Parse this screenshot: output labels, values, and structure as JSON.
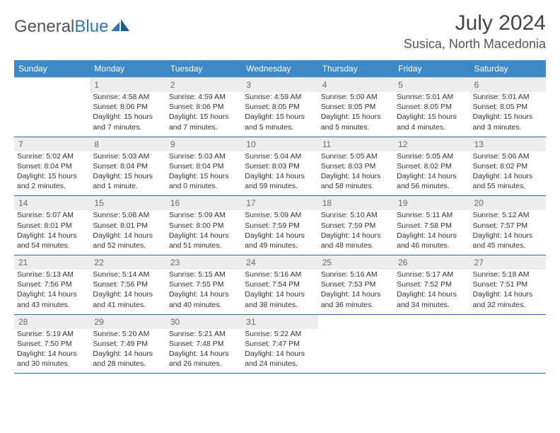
{
  "brand": {
    "part1": "General",
    "part2": "Blue"
  },
  "title": "July 2024",
  "location": "Susica, North Macedonia",
  "colors": {
    "header_bg": "#3f89c6",
    "header_text": "#ffffff",
    "daynum_bg": "#ecedef",
    "daynum_text": "#6a6a6a",
    "border": "#2a6da8",
    "brand_blue": "#2a7ab9"
  },
  "day_labels": [
    "Sunday",
    "Monday",
    "Tuesday",
    "Wednesday",
    "Thursday",
    "Friday",
    "Saturday"
  ],
  "weeks": [
    {
      "nums": [
        "",
        "1",
        "2",
        "3",
        "4",
        "5",
        "6"
      ],
      "cells": [
        [],
        [
          "Sunrise: 4:58 AM",
          "Sunset: 8:06 PM",
          "Daylight: 15 hours",
          "and 7 minutes."
        ],
        [
          "Sunrise: 4:59 AM",
          "Sunset: 8:06 PM",
          "Daylight: 15 hours",
          "and 7 minutes."
        ],
        [
          "Sunrise: 4:59 AM",
          "Sunset: 8:05 PM",
          "Daylight: 15 hours",
          "and 5 minutes."
        ],
        [
          "Sunrise: 5:00 AM",
          "Sunset: 8:05 PM",
          "Daylight: 15 hours",
          "and 5 minutes."
        ],
        [
          "Sunrise: 5:01 AM",
          "Sunset: 8:05 PM",
          "Daylight: 15 hours",
          "and 4 minutes."
        ],
        [
          "Sunrise: 5:01 AM",
          "Sunset: 8:05 PM",
          "Daylight: 15 hours",
          "and 3 minutes."
        ]
      ]
    },
    {
      "nums": [
        "7",
        "8",
        "9",
        "10",
        "11",
        "12",
        "13"
      ],
      "cells": [
        [
          "Sunrise: 5:02 AM",
          "Sunset: 8:04 PM",
          "Daylight: 15 hours",
          "and 2 minutes."
        ],
        [
          "Sunrise: 5:03 AM",
          "Sunset: 8:04 PM",
          "Daylight: 15 hours",
          "and 1 minute."
        ],
        [
          "Sunrise: 5:03 AM",
          "Sunset: 8:04 PM",
          "Daylight: 15 hours",
          "and 0 minutes."
        ],
        [
          "Sunrise: 5:04 AM",
          "Sunset: 8:03 PM",
          "Daylight: 14 hours",
          "and 59 minutes."
        ],
        [
          "Sunrise: 5:05 AM",
          "Sunset: 8:03 PM",
          "Daylight: 14 hours",
          "and 58 minutes."
        ],
        [
          "Sunrise: 5:05 AM",
          "Sunset: 8:02 PM",
          "Daylight: 14 hours",
          "and 56 minutes."
        ],
        [
          "Sunrise: 5:06 AM",
          "Sunset: 8:02 PM",
          "Daylight: 14 hours",
          "and 55 minutes."
        ]
      ]
    },
    {
      "nums": [
        "14",
        "15",
        "16",
        "17",
        "18",
        "19",
        "20"
      ],
      "cells": [
        [
          "Sunrise: 5:07 AM",
          "Sunset: 8:01 PM",
          "Daylight: 14 hours",
          "and 54 minutes."
        ],
        [
          "Sunrise: 5:08 AM",
          "Sunset: 8:01 PM",
          "Daylight: 14 hours",
          "and 52 minutes."
        ],
        [
          "Sunrise: 5:09 AM",
          "Sunset: 8:00 PM",
          "Daylight: 14 hours",
          "and 51 minutes."
        ],
        [
          "Sunrise: 5:09 AM",
          "Sunset: 7:59 PM",
          "Daylight: 14 hours",
          "and 49 minutes."
        ],
        [
          "Sunrise: 5:10 AM",
          "Sunset: 7:59 PM",
          "Daylight: 14 hours",
          "and 48 minutes."
        ],
        [
          "Sunrise: 5:11 AM",
          "Sunset: 7:58 PM",
          "Daylight: 14 hours",
          "and 46 minutes."
        ],
        [
          "Sunrise: 5:12 AM",
          "Sunset: 7:57 PM",
          "Daylight: 14 hours",
          "and 45 minutes."
        ]
      ]
    },
    {
      "nums": [
        "21",
        "22",
        "23",
        "24",
        "25",
        "26",
        "27"
      ],
      "cells": [
        [
          "Sunrise: 5:13 AM",
          "Sunset: 7:56 PM",
          "Daylight: 14 hours",
          "and 43 minutes."
        ],
        [
          "Sunrise: 5:14 AM",
          "Sunset: 7:56 PM",
          "Daylight: 14 hours",
          "and 41 minutes."
        ],
        [
          "Sunrise: 5:15 AM",
          "Sunset: 7:55 PM",
          "Daylight: 14 hours",
          "and 40 minutes."
        ],
        [
          "Sunrise: 5:16 AM",
          "Sunset: 7:54 PM",
          "Daylight: 14 hours",
          "and 38 minutes."
        ],
        [
          "Sunrise: 5:16 AM",
          "Sunset: 7:53 PM",
          "Daylight: 14 hours",
          "and 36 minutes."
        ],
        [
          "Sunrise: 5:17 AM",
          "Sunset: 7:52 PM",
          "Daylight: 14 hours",
          "and 34 minutes."
        ],
        [
          "Sunrise: 5:18 AM",
          "Sunset: 7:51 PM",
          "Daylight: 14 hours",
          "and 32 minutes."
        ]
      ]
    },
    {
      "nums": [
        "28",
        "29",
        "30",
        "31",
        "",
        "",
        ""
      ],
      "cells": [
        [
          "Sunrise: 5:19 AM",
          "Sunset: 7:50 PM",
          "Daylight: 14 hours",
          "and 30 minutes."
        ],
        [
          "Sunrise: 5:20 AM",
          "Sunset: 7:49 PM",
          "Daylight: 14 hours",
          "and 28 minutes."
        ],
        [
          "Sunrise: 5:21 AM",
          "Sunset: 7:48 PM",
          "Daylight: 14 hours",
          "and 26 minutes."
        ],
        [
          "Sunrise: 5:22 AM",
          "Sunset: 7:47 PM",
          "Daylight: 14 hours",
          "and 24 minutes."
        ],
        [],
        [],
        []
      ]
    }
  ]
}
